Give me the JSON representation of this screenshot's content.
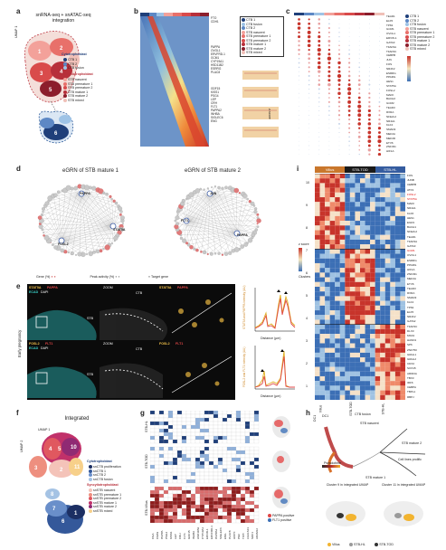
{
  "panels": {
    "a": {
      "letter": "a",
      "title_line1": "snRNA-seq + snATAC-seq",
      "title_line2": "integration",
      "axis": "UMAP 1",
      "group1": "Cytotrophoblast",
      "group2": "Syncytiotrophoblast",
      "ctb": [
        {
          "n": "6",
          "name": "CTB 1",
          "color": "#1f3f7a"
        },
        {
          "n": "7",
          "name": "CTB 2",
          "color": "#5d88c5"
        },
        {
          "n": "8",
          "name": "CTB fusion",
          "color": "#9ec3e6"
        }
      ],
      "stb": [
        {
          "n": "1",
          "name": "STB nascent",
          "color": "#f3a19a"
        },
        {
          "n": "2",
          "name": "STB premature 1",
          "color": "#e8706a"
        },
        {
          "n": "3",
          "name": "STB premature 2",
          "color": "#d94b4b"
        },
        {
          "n": "4",
          "name": "STB mature 1",
          "color": "#b72f3a"
        },
        {
          "n": "5",
          "name": "STB mature 2",
          "color": "#8c1e2c"
        },
        {
          "n": "9",
          "name": "STB mixed",
          "color": "#f0c0b8"
        }
      ]
    },
    "b": {
      "letter": "b",
      "genes": [
        "FTO",
        "CDH1",
        "PAPPA",
        "OVOL1",
        "ERVFRD-1",
        "GCM1",
        "CYP19A1",
        "HSD11B2",
        "ESRRG",
        "PLAC8",
        "GDF15",
        "KISS1",
        "PSG4",
        "LEP",
        "CRH",
        "FLT1",
        "PAPPA2",
        "INHBA",
        "SIGLEC6",
        "ENG"
      ],
      "legend": [
        "CTB 1",
        "CTB fusion",
        "CTB 2",
        "STB nascent",
        "STB premature 1",
        "STB premature 2",
        "STB mature 1",
        "STB mature 2",
        "STB mixed"
      ],
      "scale_label": "z-score"
    },
    "c": {
      "letter": "c",
      "tfs": [
        "TEAD1",
        "ELF5",
        "TP63",
        "GCM1",
        "OVOL1",
        "ERVW-1",
        "GATA3",
        "TFAP2A",
        "TFAP2C",
        "CEBPB",
        "JUN",
        "FOS",
        "NR2F2",
        "ESRRG",
        "PPARG",
        "HES1",
        "STAT5A",
        "FOSL2",
        "MAFK",
        "BACH2",
        "GCM2",
        "TEAD3",
        "RXRA",
        "NFE2L2",
        "NR4A1",
        "KLF4",
        "SMAD3",
        "MEF2A",
        "MEF2D",
        "ETV6",
        "ZNF331",
        "HIF1A"
      ],
      "legend": [
        "CTB 1",
        "CTB 2",
        "CTB fusion",
        "STB nascent",
        "STB premature 1",
        "STB premature 2",
        "STB mature 1",
        "STB mature 2",
        "STB mixed"
      ]
    },
    "d": {
      "letter": "d",
      "title1": "eGRN of STB mature 1",
      "title2": "eGRN of STB mature 2",
      "legend1": "Gene (%)",
      "legend2": "Peak activity (%)",
      "legend3": "Gene expression score",
      "legend4": "Target gene",
      "legend5": "Target gene (regulated by TF)",
      "legend6": "Gene-hub",
      "hubs1": [
        "PAPPA",
        "STAT5A",
        "FOSL2"
      ],
      "hubs2": [
        "JUN",
        "FLT1",
        "PAPPA"
      ]
    },
    "e": {
      "letter": "e",
      "side": "Early pregnancy",
      "row1": {
        "ch1": "STAT5A",
        "ch2": "PAPPA",
        "ch3": "ECAD",
        "ch4": "DAPI",
        "zoom": "ZOOM",
        "ctb": "CTB",
        "stb": "STB"
      },
      "row2": {
        "ch1": "FOSL2",
        "ch2": "FLT1",
        "ch3": "ECAD",
        "ch4": "DAPI",
        "zoom": "ZOOM",
        "ctb": "CTB",
        "stb": "STB"
      },
      "plot_xlabel": "Distance (µm)",
      "plot1_ylabel": "STAT5A and PAPPA intensity (AU)",
      "plot2_ylabel": "FOSL2 and FLT1 intensity (AU)"
    },
    "f": {
      "letter": "f",
      "title": "Integrated",
      "axis": "UMAP 1",
      "axis2": "UMAP 2",
      "group1": "Cytotrophoblast",
      "group2": "Syncytiotrophoblast",
      "ctb": [
        {
          "n": "1",
          "name": "snCTB proliferation",
          "color": "#1c2f63"
        },
        {
          "n": "6",
          "name": "snCTB 1",
          "color": "#34589a"
        },
        {
          "n": "7",
          "name": "snCTB 2",
          "color": "#6a8fca"
        },
        {
          "n": "8",
          "name": "snCTB fusion",
          "color": "#a5c3e4"
        }
      ],
      "stb": [
        {
          "n": "2",
          "name": "snSTB nascent",
          "color": "#f4c3b9"
        },
        {
          "n": "3",
          "name": "snSTB premature 1",
          "color": "#ee8f7f"
        },
        {
          "n": "4",
          "name": "snSTB premature 2",
          "color": "#e0585f"
        },
        {
          "n": "5",
          "name": "snSTB mature 1",
          "color": "#c1316a"
        },
        {
          "n": "10",
          "name": "snSTB mature 2",
          "color": "#902a73"
        },
        {
          "n": "11",
          "name": "snSTB mixed",
          "color": "#f7d08a"
        }
      ]
    },
    "g": {
      "letter": "g",
      "rows": [
        "STB-HL",
        "STB-TOD",
        "STB-Villus"
      ],
      "cols": [
        "CGA",
        "CGB3",
        "PAPPA",
        "PSG4",
        "KISS1",
        "LEP",
        "CRH",
        "FLT1",
        "GDF15",
        "INHBA",
        "HSD11B2",
        "CYP19A1",
        "ERVW-1",
        "ERVFRD-1",
        "PAPPA2",
        "SIGLEC6",
        "ENG",
        "PLAC8",
        "HOPX",
        "PGF",
        "TFPI",
        "LGALS13",
        "SDC1",
        "ADAM12"
      ],
      "legend1": "PAPPA positive",
      "legend2": "FLT1 positive"
    },
    "h": {
      "letter": "h",
      "dc": "DC1",
      "labels": [
        "CTB fusion",
        "STB nascent",
        "STB mature 2",
        "STB mature 1",
        "Cell lines prolific"
      ],
      "pseudotime": "Pseudotime",
      "cap1": "Cluster 9 in integrated UMAP",
      "cap2": "Cluster 11 in integrated UMAP",
      "legend": [
        {
          "name": "Villus",
          "color": "#f2b430"
        },
        {
          "name": "STB-HL",
          "color": "#9a9a9a"
        },
        {
          "name": "STB-TOD",
          "color": "#333333"
        }
      ]
    },
    "i": {
      "letter": "i",
      "col_groups": [
        "Villus",
        "STB-TOD",
        "STB-HL"
      ],
      "col_colors": [
        "#c9772c",
        "#1a1a1a",
        "#355c9f"
      ],
      "genes": [
        "FOS",
        "JUNB",
        "CEBPB",
        "ATF3",
        "FOSL2",
        "STAT5A",
        "MAFF",
        "NR4A1",
        "KLF6",
        "HES1",
        "EGR1",
        "BACH1",
        "NFE2L2",
        "TEAD1",
        "TFAP2A",
        "GATA3",
        "GCM1",
        "OVOL1",
        "ESRRG",
        "PPARG",
        "HIF1A",
        "ZNF331",
        "MEF2A",
        "ETV6",
        "TEAD3",
        "RXRA",
        "SMAD3",
        "KLF4",
        "TP63",
        "ELF5",
        "NR2F2",
        "GATA2",
        "TFAP2C",
        "DLX3",
        "MSX2",
        "HAND1",
        "SP6",
        "ZNF750",
        "GRHL1",
        "GRHL2",
        "CDX2",
        "SOX15",
        "ARID3A",
        "TBX3",
        "IRF6",
        "CEBPA",
        "TBPL1",
        "RBPJ"
      ],
      "red_genes": [
        "FOSL2",
        "STAT5A",
        "GCM1"
      ],
      "row_clusters": [
        "10",
        "9",
        "8",
        "7",
        "6",
        "5",
        "4",
        "3",
        "2",
        "1"
      ],
      "zscore_label": "z score",
      "cluster_label": "Clusters"
    }
  }
}
